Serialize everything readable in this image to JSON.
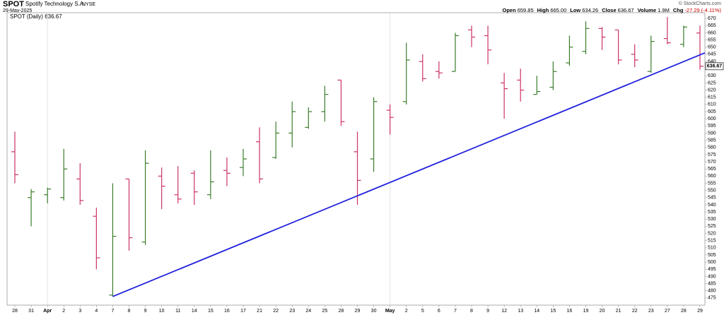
{
  "chart_data": {
    "type": "ohlc",
    "symbol": "SPOT",
    "company": "Spotify Technology S.A.",
    "exchange": "NYSE",
    "date": "29-May-2025",
    "credit": "© StockCharts.com",
    "stats": [
      {
        "label": "Open",
        "value": "659.85"
      },
      {
        "label": "High",
        "value": "665.00"
      },
      {
        "label": "Low",
        "value": "634.26"
      },
      {
        "label": "Close",
        "value": "636.67"
      },
      {
        "label": "Volume",
        "value": "1.9M"
      },
      {
        "label": "Chg",
        "value": "-27.29 (-4.11%)"
      }
    ],
    "legend": "SPOT (Daily) 636.67",
    "last_price": 636.67,
    "categories": [
      "28",
      "31",
      "Apr",
      "2",
      "3",
      "4",
      "7",
      "8",
      "9",
      "10",
      "11",
      "14",
      "15",
      "16",
      "17",
      "21",
      "22",
      "23",
      "24",
      "25",
      "28",
      "29",
      "30",
      "May",
      "2",
      "5",
      "6",
      "7",
      "8",
      "9",
      "12",
      "13",
      "14",
      "15",
      "16",
      "19",
      "20",
      "21",
      "22",
      "23",
      "27",
      "28",
      "29"
    ],
    "open": [
      577,
      545,
      547,
      545,
      558,
      532,
      477,
      558,
      514,
      560,
      547,
      562,
      547,
      564,
      566,
      584,
      573,
      590,
      594,
      605,
      627,
      577,
      572,
      606,
      612,
      640,
      633,
      633,
      662,
      658,
      625,
      627,
      617,
      622,
      639,
      647,
      663,
      662,
      645,
      633,
      656,
      652,
      659.85
    ],
    "high": [
      591,
      551,
      552,
      579,
      569,
      538,
      555,
      558,
      578,
      566,
      567,
      564,
      578,
      573,
      579,
      594,
      598,
      612,
      608,
      623,
      627,
      591,
      615,
      610,
      653,
      645,
      640,
      660,
      665,
      665,
      632,
      635,
      630,
      640,
      658,
      668,
      664,
      662,
      652,
      658,
      671,
      665,
      665
    ],
    "low": [
      555,
      525,
      541,
      543,
      540,
      495,
      476,
      508,
      512,
      537,
      541,
      540,
      544,
      553,
      560,
      555,
      572,
      580,
      593,
      598,
      595,
      540,
      563,
      589,
      610,
      626,
      628,
      633,
      650,
      638,
      600,
      612,
      617,
      620,
      637,
      645,
      648,
      638,
      636,
      632,
      652,
      650,
      634.26
    ],
    "close": [
      561,
      549,
      551,
      565,
      543,
      503,
      518,
      517,
      569,
      553,
      544,
      549,
      556,
      562,
      572,
      558,
      590,
      605,
      605,
      617,
      598,
      557,
      612,
      601,
      641,
      628,
      632,
      658,
      657,
      648,
      621,
      620,
      619,
      633,
      650,
      663,
      657,
      641,
      641,
      654,
      653,
      664,
      636.67
    ],
    "up_color": "#3a7d2a",
    "down_color": "#cc3366",
    "trendline": {
      "color": "#2020dd",
      "start": [
        6,
        476
      ],
      "end": [
        43.3,
        646
      ]
    },
    "ylim": [
      470,
      674
    ],
    "yticks": [
      475,
      480,
      485,
      490,
      495,
      500,
      505,
      510,
      515,
      520,
      525,
      530,
      535,
      540,
      545,
      550,
      555,
      560,
      565,
      570,
      575,
      580,
      585,
      590,
      595,
      600,
      605,
      610,
      615,
      620,
      625,
      630,
      635,
      640,
      645,
      650,
      655,
      660,
      665,
      670
    ]
  }
}
